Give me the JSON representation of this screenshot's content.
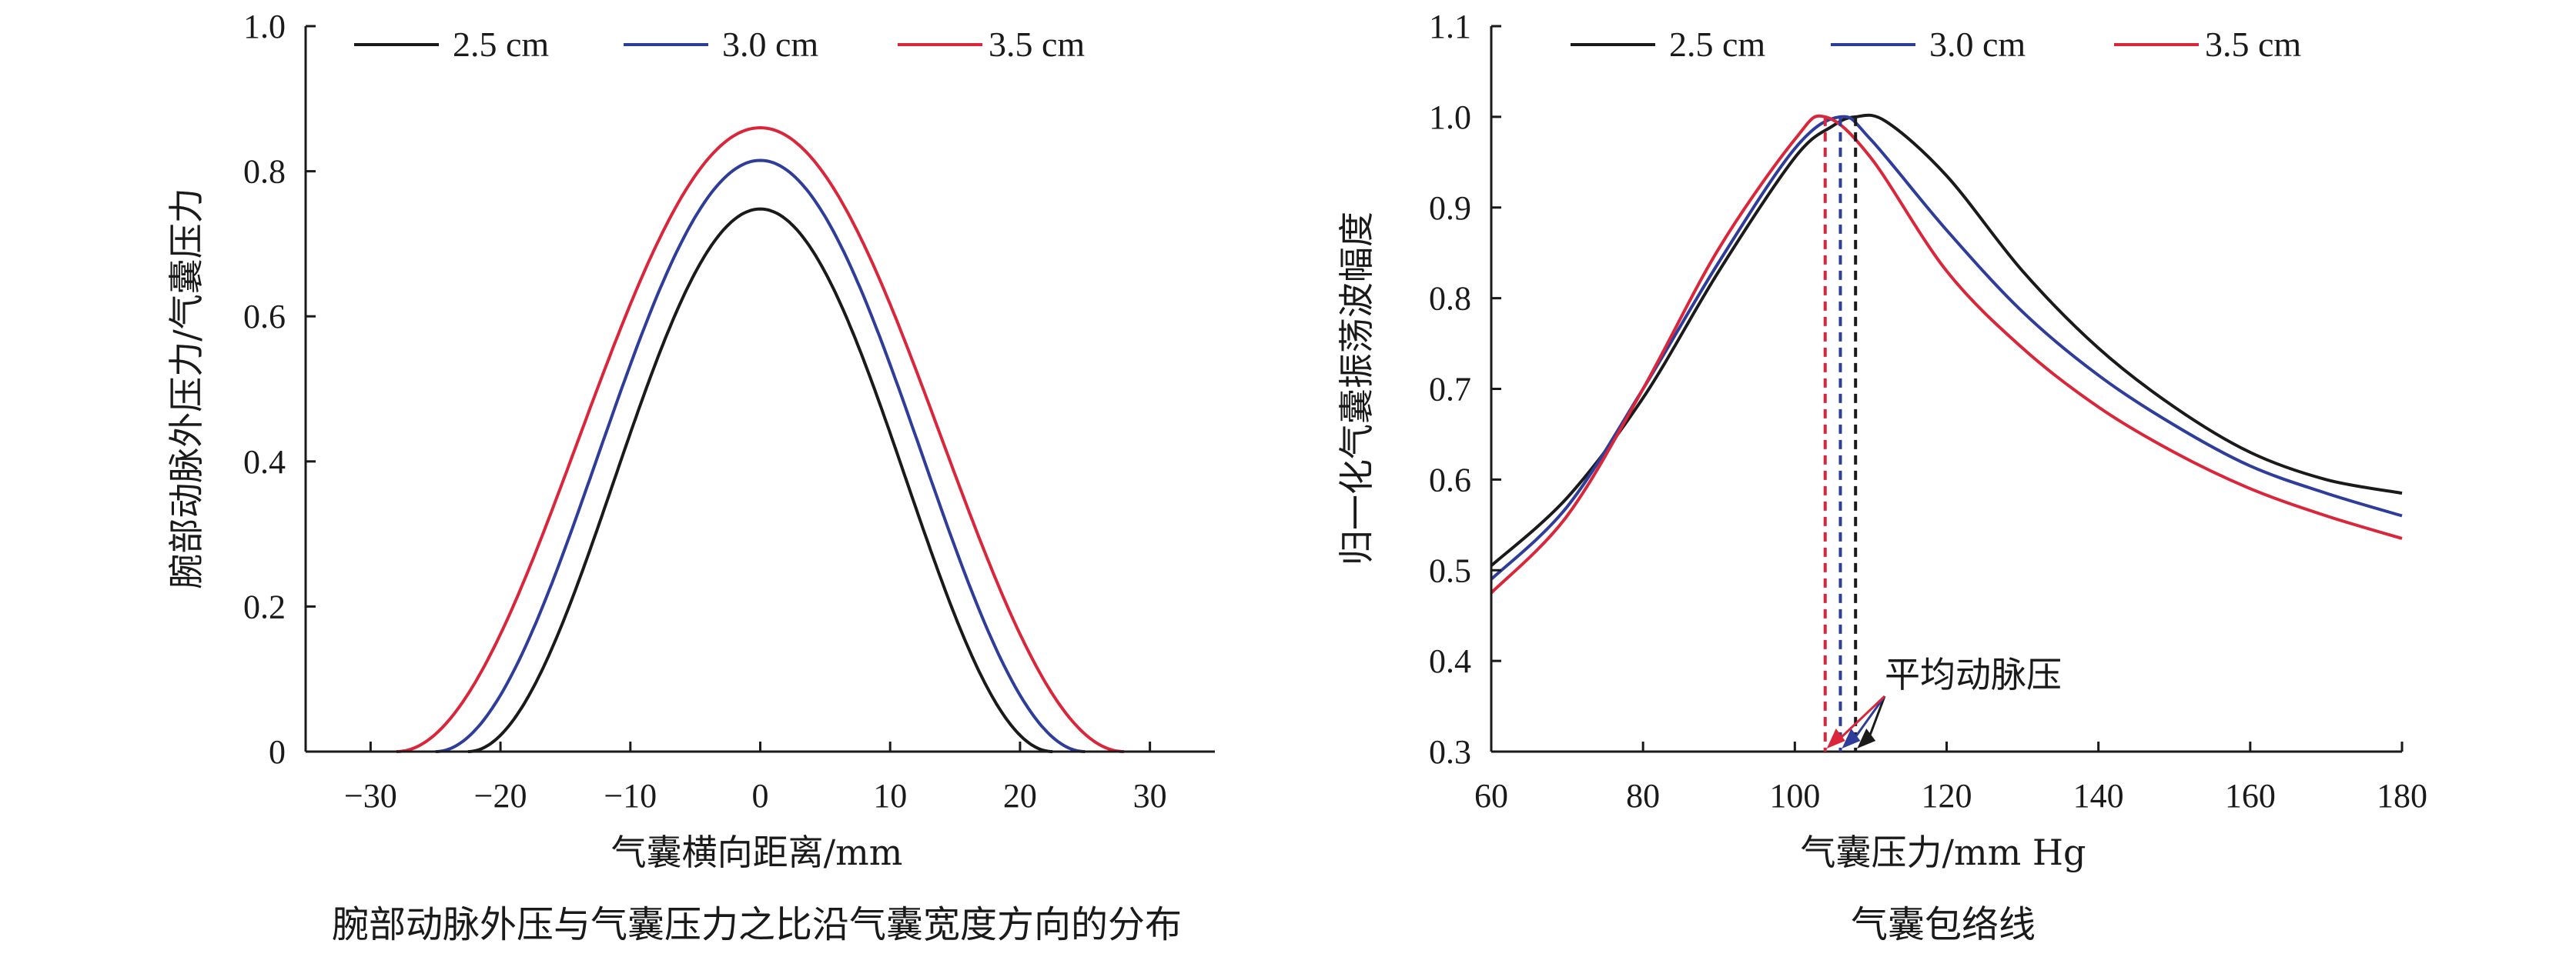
{
  "colors": {
    "black": "#1a1a1a",
    "blue": "#2e3d99",
    "red": "#d9263a"
  },
  "chart_data": [
    {
      "type": "line",
      "caption": "腕部动脉外压与气囊压力之比沿气囊宽度方向的分布",
      "xlabel": "气囊横向距离/mm",
      "ylabel": "腕部动脉外压力/气囊压力",
      "xlim": [
        -35,
        35
      ],
      "ylim": [
        0,
        1.0
      ],
      "xticks": [
        -30,
        -20,
        -10,
        0,
        10,
        20,
        30
      ],
      "xtick_labels": [
        "−30",
        "−20",
        "−10",
        "0",
        "10",
        "20",
        "30"
      ],
      "yticks": [
        0,
        0.2,
        0.4,
        0.6,
        0.8,
        1.0
      ],
      "ytick_labels": [
        "0",
        "0.2",
        "0.4",
        "0.6",
        "0.8",
        "1.0"
      ],
      "legend_position": "top",
      "series": [
        {
          "name": "2.5 cm",
          "color": "#1a1a1a",
          "peak": 0.748,
          "half_width": 22.5
        },
        {
          "name": "3.0 cm",
          "color": "#2e3d99",
          "peak": 0.815,
          "half_width": 25.0
        },
        {
          "name": "3.5 cm",
          "color": "#d9263a",
          "peak": 0.86,
          "half_width": 28.0
        }
      ]
    },
    {
      "type": "line",
      "caption": "气囊包络线",
      "xlabel": "气囊压力/mm Hg",
      "ylabel": "归一化气囊振荡波幅度",
      "xlim": [
        60,
        180
      ],
      "ylim": [
        0.3,
        1.1
      ],
      "xticks": [
        60,
        80,
        100,
        120,
        140,
        160,
        180
      ],
      "xtick_labels": [
        "60",
        "80",
        "100",
        "120",
        "140",
        "160",
        "180"
      ],
      "yticks": [
        0.3,
        0.4,
        0.5,
        0.6,
        0.7,
        0.8,
        0.9,
        1.0,
        1.1
      ],
      "ytick_labels": [
        "0.3",
        "0.4",
        "0.5",
        "0.6",
        "0.7",
        "0.8",
        "0.9",
        "1.0",
        "1.1"
      ],
      "legend_position": "top",
      "annotation": "平均动脉压",
      "series": [
        {
          "name": "2.5 cm",
          "color": "#1a1a1a",
          "peak_x": 108,
          "x": [
            60,
            70,
            80,
            90,
            100,
            105,
            108,
            112,
            120,
            130,
            140,
            150,
            160,
            170,
            180
          ],
          "y": [
            0.505,
            0.58,
            0.69,
            0.83,
            0.955,
            0.99,
            1.0,
            0.995,
            0.935,
            0.83,
            0.745,
            0.68,
            0.63,
            0.6,
            0.585
          ]
        },
        {
          "name": "3.0 cm",
          "color": "#2e3d99",
          "peak_x": 106,
          "x": [
            60,
            70,
            80,
            90,
            100,
            106,
            110,
            120,
            130,
            140,
            150,
            160,
            170,
            180
          ],
          "y": [
            0.49,
            0.57,
            0.7,
            0.84,
            0.965,
            1.0,
            0.975,
            0.875,
            0.785,
            0.715,
            0.66,
            0.615,
            0.585,
            0.56
          ]
        },
        {
          "name": "3.5 cm",
          "color": "#d9263a",
          "peak_x": 104,
          "x": [
            60,
            70,
            80,
            90,
            100,
            104,
            110,
            120,
            130,
            140,
            150,
            160,
            170,
            180
          ],
          "y": [
            0.475,
            0.56,
            0.7,
            0.855,
            0.975,
            1.0,
            0.955,
            0.83,
            0.745,
            0.68,
            0.63,
            0.59,
            0.56,
            0.535
          ]
        }
      ]
    }
  ]
}
